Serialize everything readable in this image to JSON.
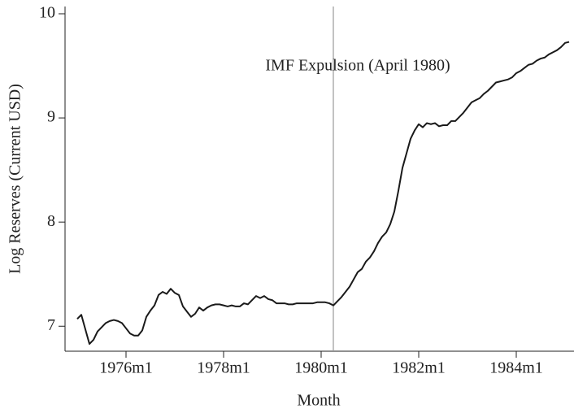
{
  "chart_data": {
    "type": "line",
    "xlabel": "Month",
    "ylabel": "Log Reserves (Current USD)",
    "x": [
      "1975m1",
      "1975m2",
      "1975m3",
      "1975m4",
      "1975m5",
      "1975m6",
      "1975m7",
      "1975m8",
      "1975m9",
      "1975m10",
      "1975m11",
      "1975m12",
      "1976m1",
      "1976m2",
      "1976m3",
      "1976m4",
      "1976m5",
      "1976m6",
      "1976m7",
      "1976m8",
      "1976m9",
      "1976m10",
      "1976m11",
      "1976m12",
      "1977m1",
      "1977m2",
      "1977m3",
      "1977m4",
      "1977m5",
      "1977m6",
      "1977m7",
      "1977m8",
      "1977m9",
      "1977m10",
      "1977m11",
      "1977m12",
      "1978m1",
      "1978m2",
      "1978m3",
      "1978m4",
      "1978m5",
      "1978m6",
      "1978m7",
      "1978m8",
      "1978m9",
      "1978m10",
      "1978m11",
      "1978m12",
      "1979m1",
      "1979m2",
      "1979m3",
      "1979m4",
      "1979m5",
      "1979m6",
      "1979m7",
      "1979m8",
      "1979m9",
      "1979m10",
      "1979m11",
      "1979m12",
      "1980m1",
      "1980m2",
      "1980m3",
      "1980m4",
      "1980m5",
      "1980m6",
      "1980m7",
      "1980m8",
      "1980m9",
      "1980m10",
      "1980m11",
      "1980m12",
      "1981m1",
      "1981m2",
      "1981m3",
      "1981m4",
      "1981m5",
      "1981m6",
      "1981m7",
      "1981m8",
      "1981m9",
      "1981m10",
      "1981m11",
      "1981m12",
      "1982m1",
      "1982m2",
      "1982m3",
      "1982m4",
      "1982m5",
      "1982m6",
      "1982m7",
      "1982m8",
      "1982m9",
      "1982m10",
      "1982m11",
      "1982m12",
      "1983m1",
      "1983m2",
      "1983m3",
      "1983m4",
      "1983m5",
      "1983m6",
      "1983m7",
      "1983m8",
      "1983m9",
      "1983m10",
      "1983m11",
      "1983m12",
      "1984m1",
      "1984m2",
      "1984m3",
      "1984m4",
      "1984m5",
      "1984m6",
      "1984m7",
      "1984m8",
      "1984m9",
      "1984m10",
      "1984m11",
      "1984m12",
      "1985m1",
      "1985m2"
    ],
    "series": [
      {
        "color": "#1a1a1a",
        "values": [
          7.07,
          7.11,
          6.97,
          6.83,
          6.87,
          6.95,
          6.99,
          7.03,
          7.05,
          7.06,
          7.05,
          7.03,
          6.98,
          6.93,
          6.91,
          6.91,
          6.96,
          7.09,
          7.15,
          7.2,
          7.3,
          7.33,
          7.31,
          7.36,
          7.32,
          7.3,
          7.19,
          7.14,
          7.09,
          7.12,
          7.18,
          7.15,
          7.18,
          7.2,
          7.21,
          7.21,
          7.2,
          7.19,
          7.2,
          7.19,
          7.19,
          7.22,
          7.21,
          7.25,
          7.29,
          7.27,
          7.29,
          7.26,
          7.25,
          7.22,
          7.22,
          7.22,
          7.21,
          7.21,
          7.22,
          7.22,
          7.22,
          7.22,
          7.22,
          7.23,
          7.23,
          7.23,
          7.22,
          7.2,
          7.24,
          7.28,
          7.33,
          7.38,
          7.45,
          7.52,
          7.55,
          7.62,
          7.66,
          7.72,
          7.8,
          7.86,
          7.9,
          7.98,
          8.1,
          8.3,
          8.52,
          8.66,
          8.8,
          8.88,
          8.94,
          8.91,
          8.95,
          8.94,
          8.95,
          8.92,
          8.93,
          8.93,
          8.97,
          8.97,
          9.01,
          9.05,
          9.1,
          9.15,
          9.17,
          9.19,
          9.23,
          9.26,
          9.3,
          9.34,
          9.35,
          9.36,
          9.37,
          9.39,
          9.43,
          9.45,
          9.48,
          9.51,
          9.52,
          9.55,
          9.57,
          9.58,
          9.61,
          9.63,
          9.65,
          9.68,
          9.72,
          9.73
        ]
      }
    ],
    "xticks": [
      "1976m1",
      "1978m1",
      "1980m1",
      "1982m1",
      "1984m1"
    ],
    "ylim": [
      6.76,
      10.07
    ],
    "yticks": [
      7,
      8,
      9,
      10
    ],
    "vline": {
      "x": "1980m4",
      "color": "#999999",
      "label": "IMF Expulsion (April 1980)"
    }
  }
}
